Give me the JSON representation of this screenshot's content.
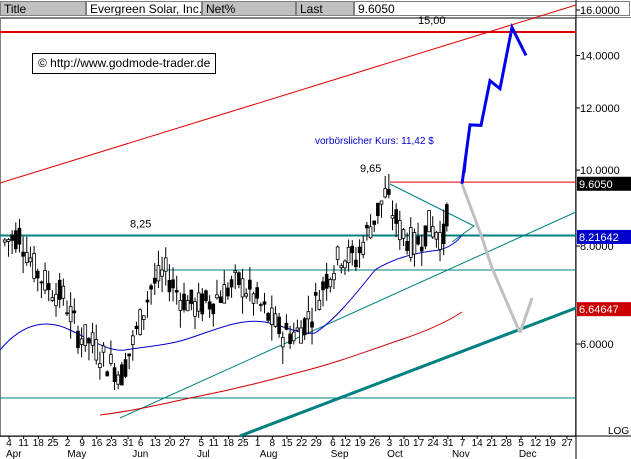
{
  "header": {
    "title_label": "Title",
    "title_value": "Evergreen Solar, Inc.",
    "netpct_label": "Net%",
    "last_label": "Last",
    "last_value": "9.6050"
  },
  "watermark": "© http://www.godmode-trader.de",
  "chart_data": {
    "type": "candlestick",
    "y_scale": "log",
    "y_axis_label": "LOG",
    "ylim": [
      4.2,
      16.8
    ],
    "y_ticks": [
      {
        "value": 16.0,
        "label": "16.0000"
      },
      {
        "value": 14.0,
        "label": "14.0000"
      },
      {
        "value": 12.0,
        "label": "12.0000"
      },
      {
        "value": 10.0,
        "label": "10.0000"
      },
      {
        "value": 8.0,
        "label": "8.0000"
      },
      {
        "value": 6.0,
        "label": "6.0000"
      }
    ],
    "price_tags": [
      {
        "value": 9.605,
        "label": "9.6050",
        "bg": "#000000",
        "fg": "#ffffff"
      },
      {
        "value": 8.21642,
        "label": "8.21642",
        "bg": "#0000cc",
        "fg": "#ffffff"
      },
      {
        "value": 6.64647,
        "label": "6.64647",
        "bg": "#cc0000",
        "fg": "#ffffff"
      }
    ],
    "x_day_labels": [
      {
        "date": "2007-04-04",
        "label": "4"
      },
      {
        "date": "2007-04-11",
        "label": "11"
      },
      {
        "date": "2007-04-18",
        "label": "18"
      },
      {
        "date": "2007-04-25",
        "label": "25"
      },
      {
        "date": "2007-05-02",
        "label": "2"
      },
      {
        "date": "2007-05-09",
        "label": "9"
      },
      {
        "date": "2007-05-16",
        "label": "16"
      },
      {
        "date": "2007-05-23",
        "label": "23"
      },
      {
        "date": "2007-05-31",
        "label": "31"
      },
      {
        "date": "2007-06-06",
        "label": "6"
      },
      {
        "date": "2007-06-13",
        "label": "13"
      },
      {
        "date": "2007-06-20",
        "label": "20"
      },
      {
        "date": "2007-06-27",
        "label": "27"
      },
      {
        "date": "2007-07-05",
        "label": "5"
      },
      {
        "date": "2007-07-11",
        "label": "11"
      },
      {
        "date": "2007-07-18",
        "label": "18"
      },
      {
        "date": "2007-07-25",
        "label": "25"
      },
      {
        "date": "2007-08-01",
        "label": "1"
      },
      {
        "date": "2007-08-08",
        "label": "8"
      },
      {
        "date": "2007-08-15",
        "label": "15"
      },
      {
        "date": "2007-08-22",
        "label": "22"
      },
      {
        "date": "2007-08-29",
        "label": "29"
      },
      {
        "date": "2007-09-06",
        "label": "6"
      },
      {
        "date": "2007-09-12",
        "label": "12"
      },
      {
        "date": "2007-09-19",
        "label": "19"
      },
      {
        "date": "2007-09-26",
        "label": "26"
      },
      {
        "date": "2007-10-03",
        "label": "3"
      },
      {
        "date": "2007-10-10",
        "label": "10"
      },
      {
        "date": "2007-10-17",
        "label": "17"
      },
      {
        "date": "2007-10-24",
        "label": "24"
      },
      {
        "date": "2007-10-31",
        "label": "31"
      },
      {
        "date": "2007-11-07",
        "label": "7"
      },
      {
        "date": "2007-11-14",
        "label": "14"
      },
      {
        "date": "2007-11-21",
        "label": "21"
      },
      {
        "date": "2007-11-28",
        "label": "28"
      },
      {
        "date": "2007-12-05",
        "label": "5"
      },
      {
        "date": "2007-12-12",
        "label": "12"
      },
      {
        "date": "2007-12-19",
        "label": "19"
      },
      {
        "date": "2007-12-27",
        "label": "27"
      }
    ],
    "x_month_labels": [
      {
        "date": "2007-04-04",
        "label": "Apr"
      },
      {
        "date": "2007-05-01",
        "label": "May"
      },
      {
        "date": "2007-06-01",
        "label": "Jun"
      },
      {
        "date": "2007-07-02",
        "label": "Jul"
      },
      {
        "date": "2007-08-01",
        "label": "Aug"
      },
      {
        "date": "2007-09-04",
        "label": "Sep"
      },
      {
        "date": "2007-10-01",
        "label": "Oct"
      },
      {
        "date": "2007-11-01",
        "label": "Nov"
      },
      {
        "date": "2007-12-03",
        "label": "Dec"
      }
    ],
    "closes": [
      {
        "date": "2007-04-02",
        "close": 8.1
      },
      {
        "date": "2007-04-09",
        "close": 8.3
      },
      {
        "date": "2007-04-16",
        "close": 7.5
      },
      {
        "date": "2007-04-23",
        "close": 7.1
      },
      {
        "date": "2007-04-30",
        "close": 6.9
      },
      {
        "date": "2007-05-07",
        "close": 6.2
      },
      {
        "date": "2007-05-14",
        "close": 6.0
      },
      {
        "date": "2007-05-21",
        "close": 5.7
      },
      {
        "date": "2007-05-28",
        "close": 5.5
      },
      {
        "date": "2007-06-04",
        "close": 6.2
      },
      {
        "date": "2007-06-11",
        "close": 7.1
      },
      {
        "date": "2007-06-18",
        "close": 7.4
      },
      {
        "date": "2007-06-25",
        "close": 6.9
      },
      {
        "date": "2007-07-02",
        "close": 6.7
      },
      {
        "date": "2007-07-09",
        "close": 6.8
      },
      {
        "date": "2007-07-16",
        "close": 7.0
      },
      {
        "date": "2007-07-23",
        "close": 7.2
      },
      {
        "date": "2007-07-30",
        "close": 6.9
      },
      {
        "date": "2007-08-06",
        "close": 6.5
      },
      {
        "date": "2007-08-13",
        "close": 6.2
      },
      {
        "date": "2007-08-20",
        "close": 6.2
      },
      {
        "date": "2007-08-27",
        "close": 6.6
      },
      {
        "date": "2007-09-03",
        "close": 7.3
      },
      {
        "date": "2007-09-10",
        "close": 7.8
      },
      {
        "date": "2007-09-17",
        "close": 7.7
      },
      {
        "date": "2007-09-24",
        "close": 8.5
      },
      {
        "date": "2007-10-01",
        "close": 9.3
      },
      {
        "date": "2007-10-08",
        "close": 8.4
      },
      {
        "date": "2007-10-15",
        "close": 8.0
      },
      {
        "date": "2007-10-22",
        "close": 8.5
      },
      {
        "date": "2007-10-29",
        "close": 8.2
      },
      {
        "date": "2007-11-01",
        "close": 9.6
      }
    ],
    "horizontal_lines": [
      {
        "value": 15.0,
        "label": "15,00",
        "color": "#e00000"
      },
      {
        "value": 9.65,
        "label": "9,65",
        "color": "#e00000"
      },
      {
        "value": 8.25,
        "label": "8,25",
        "color": "#008080"
      }
    ],
    "annotation": "vorbörslicher Kurs: 11,42 $",
    "indicators": [
      "moving average (blue)",
      "moving average (red)"
    ],
    "trendlines": [
      "red upper channel",
      "teal support",
      "teal lower support",
      "triangle formation"
    ],
    "projection_path_blue": [
      9.6,
      11.42,
      11.4,
      13.0,
      12.7,
      15.2,
      14.0
    ],
    "projection_path_gray": [
      9.6,
      8.2,
      7.5,
      6.2
    ]
  }
}
